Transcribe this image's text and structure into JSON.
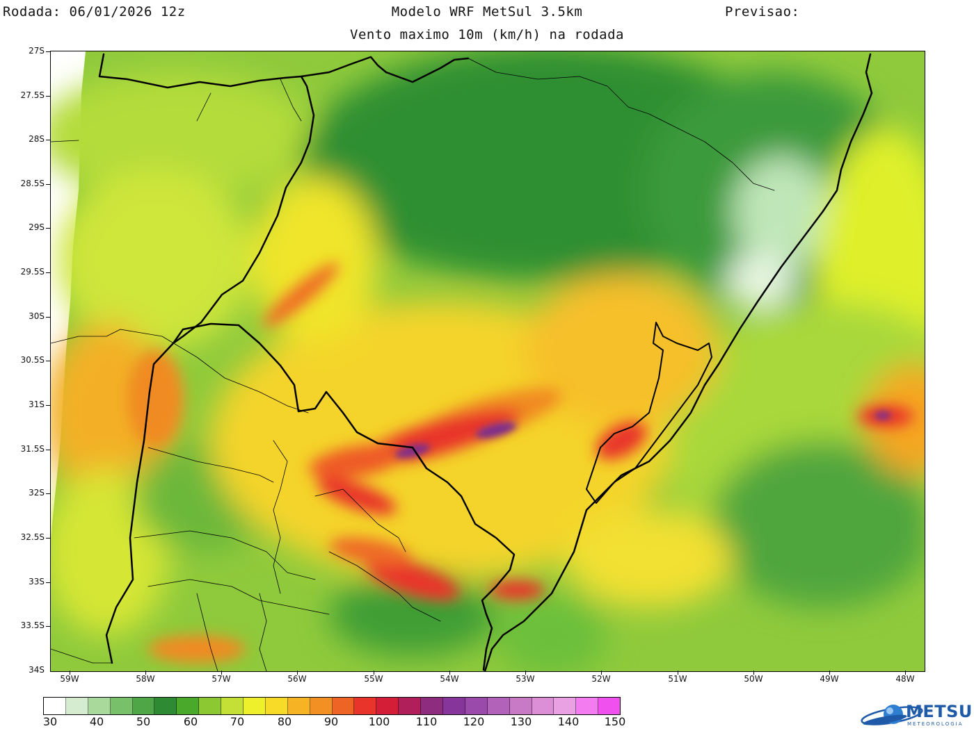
{
  "header": {
    "run": "Rodada: 06/01/2026 12z",
    "model": "Modelo WRF MetSul 3.5km",
    "forecast": "Previsao:",
    "subtitle": "Vento maximo 10m (km/h) na rodada"
  },
  "map": {
    "lat_labels": [
      "27S",
      "27.5S",
      "28S",
      "28.5S",
      "29S",
      "29.5S",
      "30S",
      "30.5S",
      "31S",
      "31.5S",
      "32S",
      "32.5S",
      "33S",
      "33.5S",
      "34S"
    ],
    "lon_labels": [
      "59W",
      "58W",
      "57W",
      "56W",
      "55W",
      "54W",
      "53W",
      "52W",
      "51W",
      "50W",
      "49W",
      "48W"
    ],
    "colors": {
      "low_white": "#ffffff",
      "green_dark": "#1f8a1f",
      "green": "#5cb82e",
      "yellow_green": "#b4e03a",
      "yellow": "#f2ef2a",
      "orange": "#f5a623",
      "red": "#e6202c",
      "purple": "#7b2d8e",
      "magenta": "#f03cf0"
    }
  },
  "colorbar": {
    "labels": [
      "30",
      "40",
      "50",
      "60",
      "70",
      "80",
      "90",
      "100",
      "110",
      "120",
      "130",
      "140",
      "150"
    ],
    "colors": [
      "#ffffff",
      "#d6ecd0",
      "#a9d99b",
      "#79c06a",
      "#4fa647",
      "#2e8b33",
      "#4aa82a",
      "#8cc832",
      "#c4e036",
      "#eef02c",
      "#f8da28",
      "#f6b425",
      "#f39023",
      "#ee6424",
      "#e8342a",
      "#d41e38",
      "#b01f5a",
      "#8e2c80",
      "#86369a",
      "#9a4aaa",
      "#b262b8",
      "#c97ac6",
      "#dc8fd6",
      "#e9a1e4",
      "#f27cf0",
      "#f050ee"
    ]
  },
  "logo": {
    "text": "METSUL",
    "sub": "METEOROLOGIA"
  }
}
